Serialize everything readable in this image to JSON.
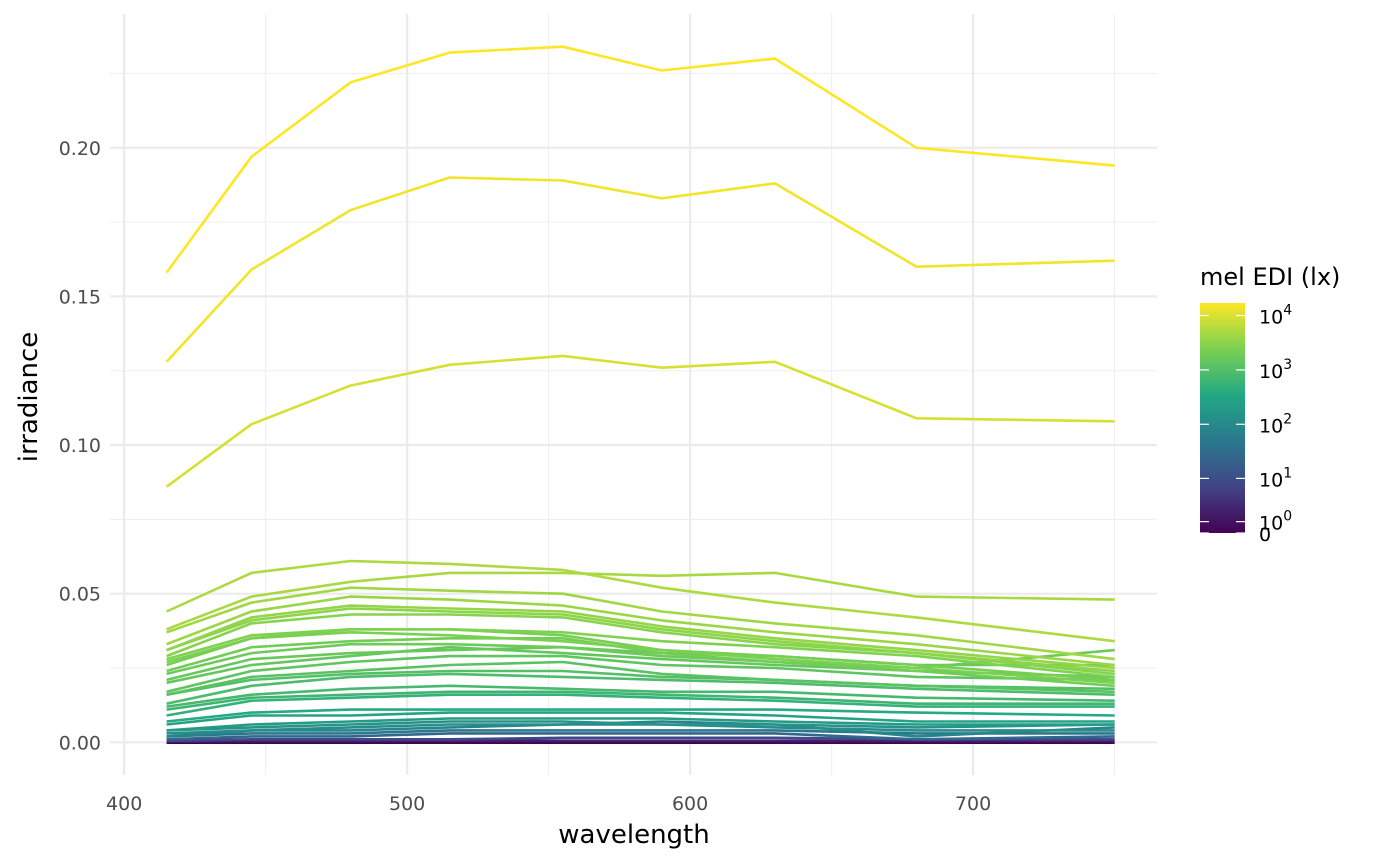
{
  "chart_data": {
    "type": "line",
    "xlabel": "wavelength",
    "ylabel": "irradiance",
    "xlim": [
      395,
      765
    ],
    "ylim": [
      -0.011,
      0.245
    ],
    "x_ticks": [
      400,
      500,
      600,
      700
    ],
    "x_tick_labels": [
      "400",
      "500",
      "600",
      "700"
    ],
    "y_ticks": [
      0.0,
      0.05,
      0.1,
      0.15,
      0.2
    ],
    "y_tick_labels": [
      "0.00",
      "0.05",
      "0.10",
      "0.15",
      "0.20"
    ],
    "grid": true,
    "legend": {
      "position": "right",
      "title": "mel EDI (lx)",
      "ticks": [
        {
          "base": "0",
          "exp": "",
          "value": 0
        },
        {
          "base": "10",
          "exp": "0",
          "value": 1
        },
        {
          "base": "10",
          "exp": "1",
          "value": 10
        },
        {
          "base": "10",
          "exp": "2",
          "value": 100
        },
        {
          "base": "10",
          "exp": "3",
          "value": 1000
        },
        {
          "base": "10",
          "exp": "4",
          "value": 10000
        }
      ],
      "max_value": 17000
    },
    "colormap": [
      "#440154",
      "#414487",
      "#2a788e",
      "#22a884",
      "#7ad151",
      "#fde725"
    ],
    "x": [
      415,
      445,
      480,
      515,
      555,
      590,
      630,
      680,
      750
    ],
    "series": [
      {
        "mel_edi": 17000,
        "values": [
          0.158,
          0.197,
          0.222,
          0.232,
          0.234,
          0.226,
          0.23,
          0.2,
          0.194
        ]
      },
      {
        "mel_edi": 14000,
        "values": [
          0.128,
          0.159,
          0.179,
          0.19,
          0.189,
          0.183,
          0.188,
          0.16,
          0.162
        ]
      },
      {
        "mel_edi": 9500,
        "values": [
          0.086,
          0.107,
          0.12,
          0.127,
          0.13,
          0.126,
          0.128,
          0.109,
          0.108
        ]
      },
      {
        "mel_edi": 5200,
        "values": [
          0.044,
          0.057,
          0.061,
          0.06,
          0.058,
          0.052,
          0.047,
          0.042,
          0.034
        ]
      },
      {
        "mel_edi": 4900,
        "values": [
          0.038,
          0.049,
          0.054,
          0.057,
          0.057,
          0.056,
          0.057,
          0.049,
          0.048
        ]
      },
      {
        "mel_edi": 4300,
        "values": [
          0.037,
          0.047,
          0.052,
          0.051,
          0.05,
          0.044,
          0.04,
          0.036,
          0.028
        ]
      },
      {
        "mel_edi": 3900,
        "values": [
          0.033,
          0.044,
          0.049,
          0.048,
          0.046,
          0.041,
          0.037,
          0.033,
          0.026
        ]
      },
      {
        "mel_edi": 3500,
        "values": [
          0.031,
          0.042,
          0.046,
          0.045,
          0.044,
          0.039,
          0.035,
          0.031,
          0.025
        ]
      },
      {
        "mel_edi": 3200,
        "values": [
          0.031,
          0.041,
          0.045,
          0.044,
          0.043,
          0.038,
          0.034,
          0.03,
          0.024
        ]
      },
      {
        "mel_edi": 2900,
        "values": [
          0.029,
          0.04,
          0.043,
          0.043,
          0.042,
          0.037,
          0.033,
          0.03,
          0.023
        ]
      },
      {
        "mel_edi": 2600,
        "values": [
          0.028,
          0.036,
          0.038,
          0.038,
          0.037,
          0.034,
          0.032,
          0.029,
          0.022
        ]
      },
      {
        "mel_edi": 2400,
        "values": [
          0.027,
          0.035,
          0.037,
          0.036,
          0.034,
          0.031,
          0.028,
          0.025,
          0.02
        ]
      },
      {
        "mel_edi": 2200,
        "values": [
          0.026,
          0.035,
          0.038,
          0.038,
          0.036,
          0.031,
          0.029,
          0.026,
          0.021
        ]
      },
      {
        "mel_edi": 2000,
        "values": [
          0.024,
          0.032,
          0.034,
          0.035,
          0.035,
          0.03,
          0.027,
          0.024,
          0.019
        ]
      },
      {
        "mel_edi": 1800,
        "values": [
          0.023,
          0.03,
          0.033,
          0.033,
          0.032,
          0.029,
          0.027,
          0.025,
          0.031
        ]
      },
      {
        "mel_edi": 1600,
        "values": [
          0.021,
          0.028,
          0.03,
          0.031,
          0.032,
          0.03,
          0.029,
          0.026,
          0.026
        ]
      },
      {
        "mel_edi": 1500,
        "values": [
          0.02,
          0.026,
          0.029,
          0.032,
          0.03,
          0.028,
          0.026,
          0.024,
          0.022
        ]
      },
      {
        "mel_edi": 1350,
        "values": [
          0.017,
          0.024,
          0.027,
          0.029,
          0.029,
          0.026,
          0.025,
          0.022,
          0.021
        ]
      },
      {
        "mel_edi": 1200,
        "values": [
          0.016,
          0.022,
          0.024,
          0.026,
          0.027,
          0.023,
          0.021,
          0.019,
          0.017
        ]
      },
      {
        "mel_edi": 1050,
        "values": [
          0.016,
          0.021,
          0.023,
          0.024,
          0.024,
          0.022,
          0.021,
          0.019,
          0.018
        ]
      },
      {
        "mel_edi": 900,
        "values": [
          0.013,
          0.019,
          0.022,
          0.023,
          0.022,
          0.021,
          0.02,
          0.018,
          0.016
        ]
      },
      {
        "mel_edi": 780,
        "values": [
          0.012,
          0.016,
          0.018,
          0.019,
          0.018,
          0.017,
          0.017,
          0.015,
          0.014
        ]
      },
      {
        "mel_edi": 650,
        "values": [
          0.011,
          0.015,
          0.016,
          0.017,
          0.017,
          0.016,
          0.015,
          0.013,
          0.013
        ]
      },
      {
        "mel_edi": 520,
        "values": [
          0.009,
          0.014,
          0.015,
          0.016,
          0.016,
          0.015,
          0.014,
          0.012,
          0.012
        ]
      },
      {
        "mel_edi": 380,
        "values": [
          0.007,
          0.01,
          0.011,
          0.011,
          0.011,
          0.011,
          0.011,
          0.01,
          0.009
        ]
      },
      {
        "mel_edi": 280,
        "values": [
          0.006,
          0.009,
          0.009,
          0.01,
          0.01,
          0.01,
          0.009,
          0.007,
          0.007
        ]
      },
      {
        "mel_edi": 200,
        "values": [
          0.004,
          0.006,
          0.007,
          0.008,
          0.008,
          0.008,
          0.007,
          0.006,
          0.006
        ]
      },
      {
        "mel_edi": 150,
        "values": [
          0.004,
          0.005,
          0.006,
          0.007,
          0.007,
          0.006,
          0.006,
          0.005,
          0.006
        ]
      },
      {
        "mel_edi": 110,
        "values": [
          0.003,
          0.004,
          0.005,
          0.006,
          0.006,
          0.006,
          0.005,
          0.004,
          0.004
        ]
      },
      {
        "mel_edi": 80,
        "values": [
          0.002,
          0.004,
          0.004,
          0.005,
          0.006,
          0.007,
          0.006,
          0.002,
          0.005
        ]
      },
      {
        "mel_edi": 50,
        "values": [
          0.002,
          0.003,
          0.003,
          0.004,
          0.004,
          0.004,
          0.004,
          0.003,
          0.003
        ]
      },
      {
        "mel_edi": 25,
        "values": [
          0.001,
          0.002,
          0.002,
          0.003,
          0.003,
          0.003,
          0.003,
          0.001,
          0.002
        ]
      },
      {
        "mel_edi": 8,
        "values": [
          0.0005,
          0.001,
          0.001,
          0.001,
          0.0015,
          0.0015,
          0.0015,
          0.001,
          0.001
        ]
      },
      {
        "mel_edi": 2,
        "values": [
          0.0002,
          0.0004,
          0.0004,
          0.0005,
          0.0005,
          0.0005,
          0.0005,
          0.0004,
          0.0004
        ]
      },
      {
        "mel_edi": 0,
        "values": [
          0.0,
          0.0,
          0.0,
          0.0,
          0.0,
          0.0,
          0.0,
          0.0,
          0.0
        ]
      }
    ]
  }
}
